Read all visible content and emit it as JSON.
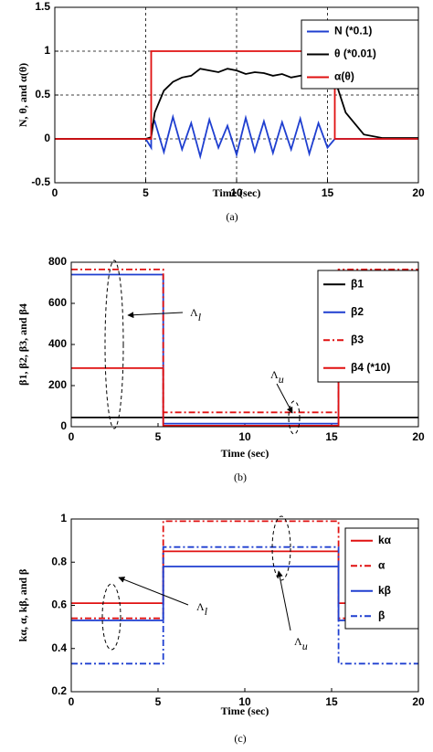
{
  "chart_data": [
    {
      "type": "line",
      "caption": "(a)",
      "xlabel": "Time (sec)",
      "ylabel": "N, θ, and α(θ)",
      "x": [
        0,
        5,
        5.3,
        5.3,
        5.5,
        6,
        6.5,
        7,
        7.5,
        8,
        8.5,
        9,
        9.5,
        10,
        10.5,
        11,
        11.5,
        12,
        12.5,
        13,
        13.5,
        14,
        14.5,
        15,
        15.4,
        15.4,
        16,
        17,
        18,
        20
      ],
      "series": [
        {
          "name": "N (*0.1)",
          "color": "#1f3fd0",
          "dash": "solid",
          "values": [
            0,
            0,
            -0.1,
            0.15,
            0.2,
            -0.15,
            0.25,
            -0.12,
            0.18,
            -0.2,
            0.22,
            -0.1,
            0.15,
            -0.18,
            0.24,
            -0.14,
            0.2,
            -0.16,
            0.19,
            -0.12,
            0.23,
            -0.17,
            0.18,
            -0.1,
            0,
            0,
            0,
            0,
            0,
            0
          ]
        },
        {
          "name": "θ (*0.01)",
          "color": "#000000",
          "dash": "solid",
          "values": [
            0,
            0,
            0.02,
            0.02,
            0.3,
            0.55,
            0.65,
            0.7,
            0.72,
            0.8,
            0.78,
            0.76,
            0.8,
            0.78,
            0.74,
            0.76,
            0.75,
            0.72,
            0.74,
            0.7,
            0.72,
            0.74,
            0.73,
            0.72,
            0.68,
            0.68,
            0.3,
            0.05,
            0.01,
            0.01
          ]
        },
        {
          "name": "α(θ)",
          "color": "#e01010",
          "dash": "solid",
          "values": [
            0,
            0,
            0,
            1,
            1,
            1,
            1,
            1,
            1,
            1,
            1,
            1,
            1,
            1,
            1,
            1,
            1,
            1,
            1,
            1,
            1,
            1,
            1,
            1,
            1,
            0,
            0,
            0,
            0,
            0
          ]
        }
      ],
      "xlim": [
        0,
        20
      ],
      "xticks": [
        0,
        5,
        10,
        15,
        20
      ],
      "ylim": [
        -0.5,
        1.5
      ],
      "yticks": [
        -0.5,
        0,
        0.5,
        1,
        1.5
      ],
      "grid": true,
      "legend": "upper right"
    },
    {
      "type": "line",
      "caption": "(b)",
      "xlabel": "Time (sec)",
      "ylabel": "β1, β2, β3, and β4",
      "x": [
        0,
        5.3,
        5.3,
        15.4,
        15.4,
        20
      ],
      "series": [
        {
          "name": "β1",
          "color": "#000000",
          "dash": "solid",
          "values": [
            45,
            45,
            45,
            45,
            45,
            45
          ]
        },
        {
          "name": "β2",
          "color": "#1f3fd0",
          "dash": "solid",
          "values": [
            740,
            740,
            15,
            15,
            740,
            740
          ]
        },
        {
          "name": "β3",
          "color": "#e01010",
          "dash": "dashdot",
          "values": [
            765,
            765,
            70,
            70,
            765,
            765
          ]
        },
        {
          "name": "β4 (*10)",
          "color": "#e01010",
          "dash": "solid",
          "values": [
            285,
            285,
            5,
            5,
            285,
            285
          ]
        }
      ],
      "annotations": [
        {
          "text": "Λ",
          "sub": "l"
        },
        {
          "text": "Λ",
          "sub": "u"
        }
      ],
      "xlim": [
        0,
        20
      ],
      "xticks": [
        0,
        5,
        10,
        15,
        20
      ],
      "ylim": [
        0,
        800
      ],
      "yticks": [
        0,
        200,
        400,
        600,
        800
      ],
      "grid": false,
      "legend": "upper right"
    },
    {
      "type": "line",
      "caption": "(c)",
      "xlabel": "Time (sec)",
      "ylabel": "kα, α, kβ, and β",
      "x": [
        0,
        5.3,
        5.3,
        15.4,
        15.4,
        20
      ],
      "series": [
        {
          "name": "kα",
          "color": "#e01010",
          "dash": "solid",
          "values": [
            0.61,
            0.61,
            0.85,
            0.85,
            0.61,
            0.61
          ]
        },
        {
          "name": "α",
          "color": "#e01010",
          "dash": "dashdot",
          "values": [
            0.54,
            0.54,
            0.99,
            0.99,
            0.54,
            0.54
          ]
        },
        {
          "name": "kβ",
          "color": "#1f3fd0",
          "dash": "solid",
          "values": [
            0.53,
            0.53,
            0.78,
            0.78,
            0.53,
            0.53
          ]
        },
        {
          "name": "β",
          "color": "#1f3fd0",
          "dash": "dashdot",
          "values": [
            0.33,
            0.33,
            0.87,
            0.87,
            0.33,
            0.33
          ]
        }
      ],
      "annotations": [
        {
          "text": "Λ",
          "sub": "l"
        },
        {
          "text": "Λ",
          "sub": "u"
        }
      ],
      "xlim": [
        0,
        20
      ],
      "xticks": [
        0,
        5,
        10,
        15,
        20
      ],
      "ylim": [
        0.2,
        1
      ],
      "yticks": [
        0.2,
        0.4,
        0.6,
        0.8,
        1
      ],
      "grid": false,
      "legend": "upper right"
    }
  ]
}
